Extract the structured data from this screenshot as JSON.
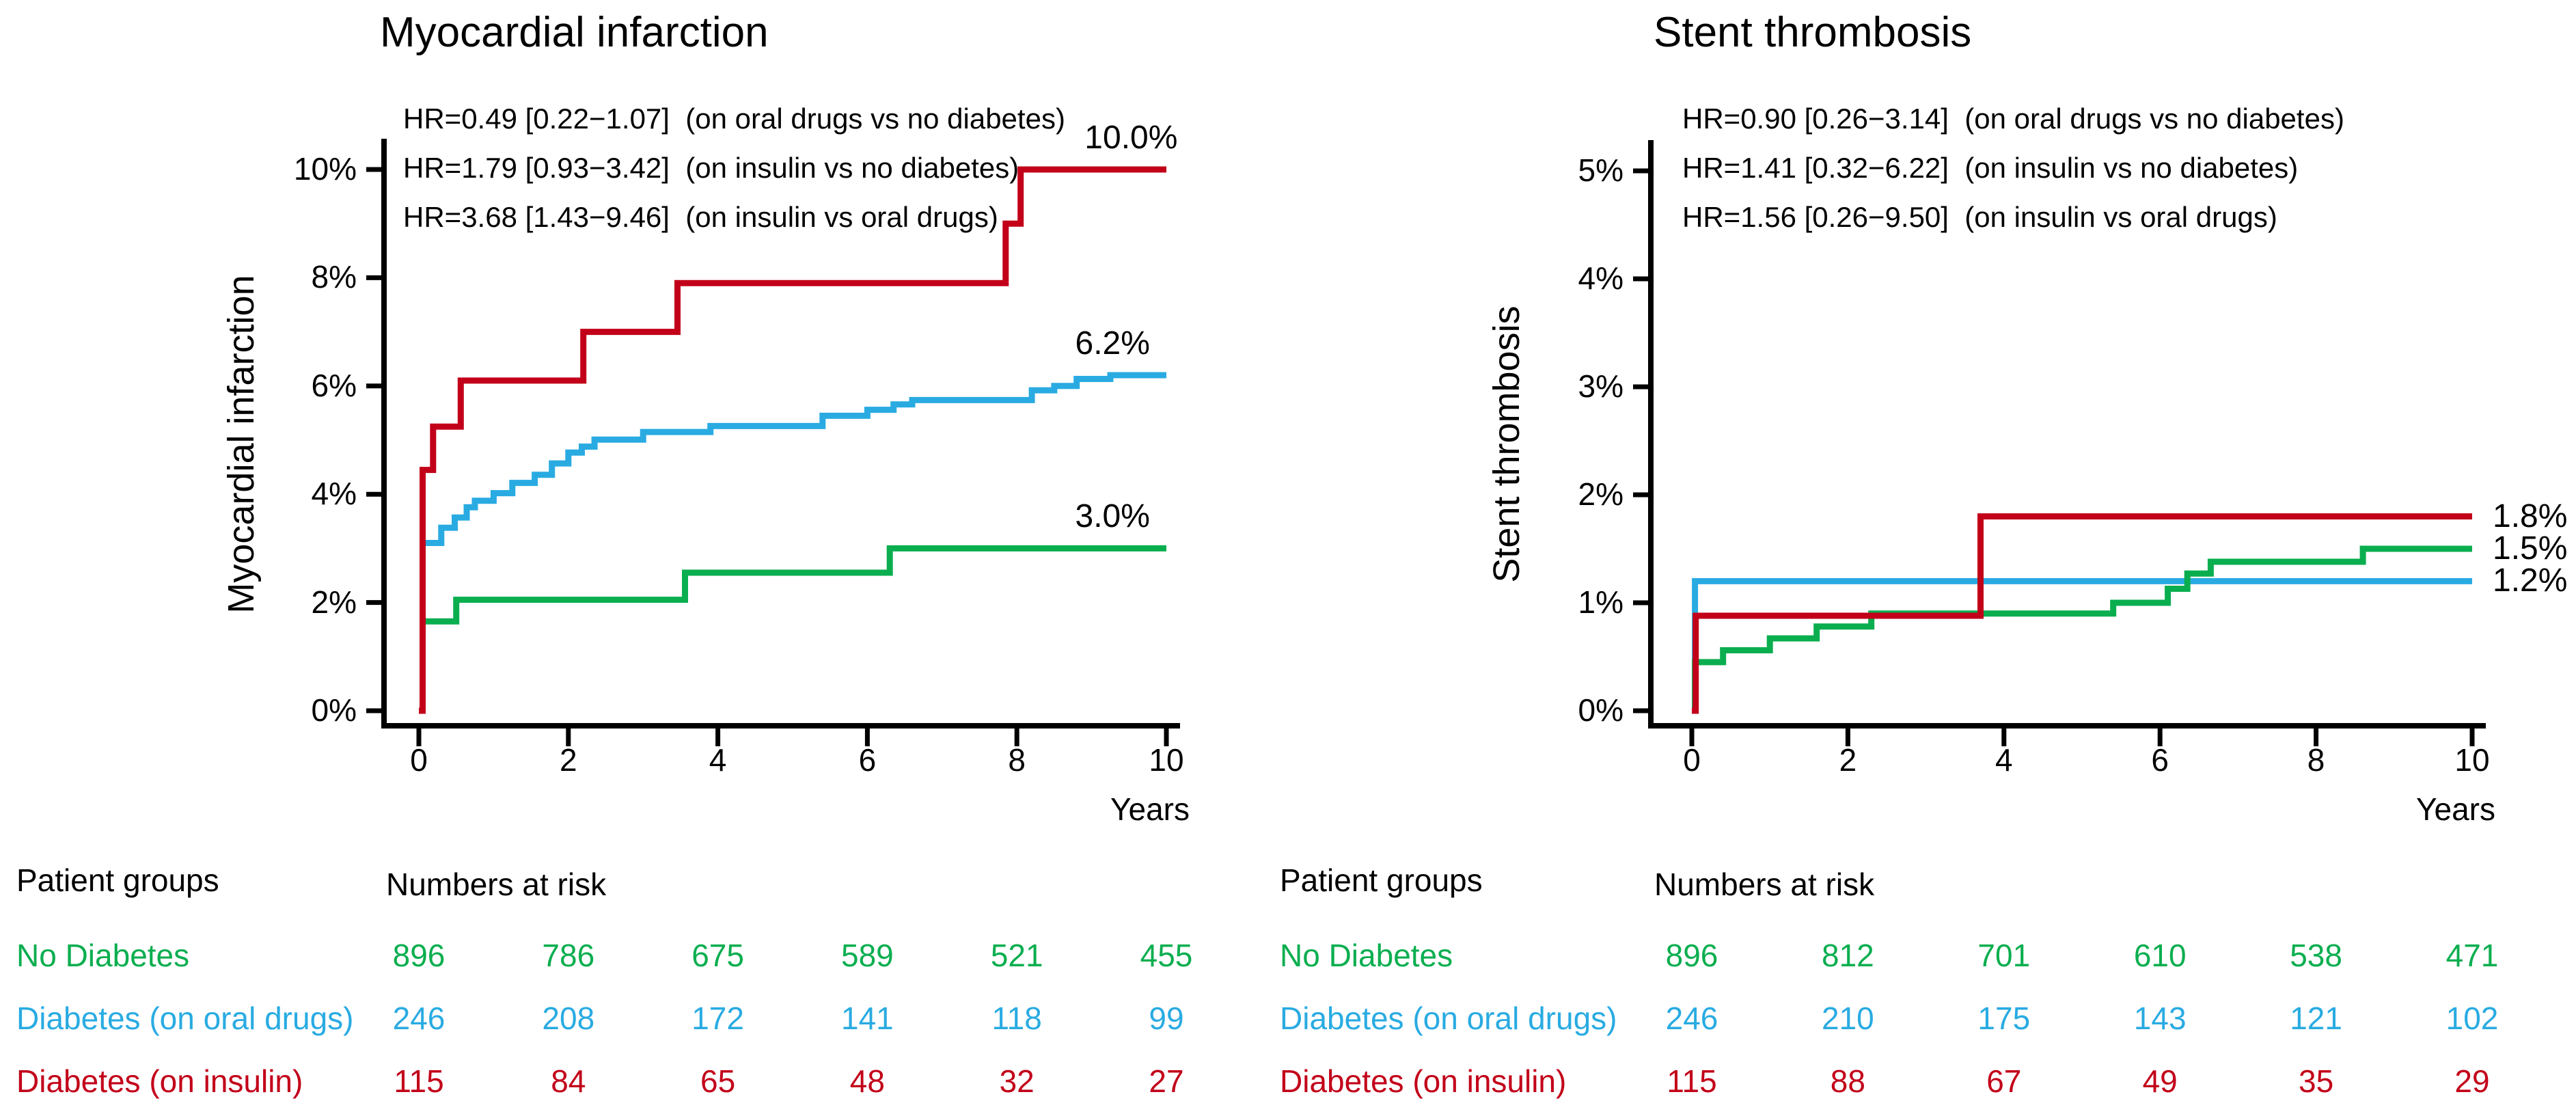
{
  "colors": {
    "no_diabetes": "#0aae4f",
    "oral": "#29abe2",
    "insulin": "#c20019",
    "axis": "#000000",
    "text": "#000000",
    "background": "#ffffff"
  },
  "chart_data": [
    {
      "type": "line",
      "subtype": "step-cumulative-incidence",
      "title": "Myocardial infarction",
      "ylabel": "Myocardial infarction",
      "xlabel": "Years",
      "xlim": [
        0,
        10
      ],
      "ylim_pct": [
        0,
        10
      ],
      "grid": false,
      "xtick_values": [
        0,
        2,
        4,
        6,
        8,
        10
      ],
      "xtick_labels": [
        "0",
        "2",
        "4",
        "6",
        "8",
        "10"
      ],
      "ytick_values": [
        0,
        2,
        4,
        6,
        8,
        10
      ],
      "ytick_labels": [
        "0%",
        "2%",
        "4%",
        "6%",
        "8%",
        "10%"
      ],
      "hr_annotations": [
        "HR=0.49 [0.22−1.07]  (on oral drugs vs no diabetes)",
        "HR=1.79 [0.93−3.42]  (on insulin vs no diabetes)",
        "HR=3.68 [1.43−9.46]  (on insulin vs oral drugs)"
      ],
      "end_label_style": "above",
      "series": [
        {
          "name": "Diabetes (on oral drugs)",
          "color_key": "oral",
          "end_label": "6.2%",
          "end_label_year": 9.78,
          "points": [
            [
              0,
              0
            ],
            [
              0.05,
              3.1
            ],
            [
              0.3,
              3.38
            ],
            [
              0.48,
              3.57
            ],
            [
              0.64,
              3.76
            ],
            [
              0.75,
              3.88
            ],
            [
              1.0,
              4.02
            ],
            [
              1.25,
              4.21
            ],
            [
              1.55,
              4.36
            ],
            [
              1.78,
              4.57
            ],
            [
              2.0,
              4.77
            ],
            [
              2.18,
              4.88
            ],
            [
              2.35,
              5.01
            ],
            [
              3.0,
              5.15
            ],
            [
              3.9,
              5.26
            ],
            [
              5.4,
              5.45
            ],
            [
              6.0,
              5.56
            ],
            [
              6.35,
              5.66
            ],
            [
              6.6,
              5.74
            ],
            [
              8.2,
              5.92
            ],
            [
              8.5,
              6.0
            ],
            [
              8.8,
              6.13
            ],
            [
              9.25,
              6.2
            ],
            [
              10,
              6.2
            ]
          ]
        },
        {
          "name": "No Diabetes",
          "color_key": "no_diabetes",
          "end_label": "3.0%",
          "end_label_year": 9.78,
          "points": [
            [
              0,
              0
            ],
            [
              0.05,
              1.65
            ],
            [
              0.5,
              2.05
            ],
            [
              3.56,
              2.55
            ],
            [
              6.3,
              3.0
            ],
            [
              10,
              3.0
            ]
          ]
        },
        {
          "name": "Diabetes (on insulin)",
          "color_key": "insulin",
          "end_label": "10.0%",
          "end_label_year": 10.15,
          "points": [
            [
              0,
              0
            ],
            [
              0.05,
              4.45
            ],
            [
              0.19,
              5.25
            ],
            [
              0.56,
              6.1
            ],
            [
              2.2,
              7.0
            ],
            [
              3.46,
              7.9
            ],
            [
              7.85,
              9.0
            ],
            [
              8.05,
              10.0
            ],
            [
              10,
              10.0
            ]
          ]
        }
      ]
    },
    {
      "type": "line",
      "subtype": "step-cumulative-incidence",
      "title": "Stent thrombosis",
      "ylabel": "Stent thrombosis",
      "xlabel": "Years",
      "xlim": [
        0,
        10
      ],
      "ylim_pct": [
        0,
        5
      ],
      "grid": false,
      "xtick_values": [
        0,
        2,
        4,
        6,
        8,
        10
      ],
      "xtick_labels": [
        "0",
        "2",
        "4",
        "6",
        "8",
        "10"
      ],
      "ytick_values": [
        0,
        1,
        2,
        3,
        4,
        5
      ],
      "ytick_labels": [
        "0%",
        "1%",
        "2%",
        "3%",
        "4%",
        "5%"
      ],
      "hr_annotations": [
        "HR=0.90 [0.26−3.14]  (on oral drugs vs no diabetes)",
        "HR=1.41 [0.32−6.22]  (on insulin vs no diabetes)",
        "HR=1.56 [0.26−9.50]  (on insulin vs oral drugs)"
      ],
      "end_label_style": "right",
      "series": [
        {
          "name": "Diabetes (on oral drugs)",
          "color_key": "oral",
          "end_label": "1.2%",
          "end_label_year": 10,
          "points": [
            [
              0,
              0
            ],
            [
              0.04,
              1.2
            ],
            [
              10,
              1.2
            ]
          ]
        },
        {
          "name": "No Diabetes",
          "color_key": "no_diabetes",
          "end_label": "1.5%",
          "end_label_year": 10,
          "points": [
            [
              0,
              0
            ],
            [
              0.04,
              0.45
            ],
            [
              0.4,
              0.56
            ],
            [
              1.0,
              0.67
            ],
            [
              1.6,
              0.78
            ],
            [
              2.3,
              0.9
            ],
            [
              5.4,
              1.0
            ],
            [
              6.1,
              1.13
            ],
            [
              6.35,
              1.27
            ],
            [
              6.65,
              1.38
            ],
            [
              8.6,
              1.5
            ],
            [
              10,
              1.5
            ]
          ]
        },
        {
          "name": "Diabetes (on insulin)",
          "color_key": "insulin",
          "end_label": "1.8%",
          "end_label_year": 10,
          "points": [
            [
              0,
              0
            ],
            [
              0.05,
              0.88
            ],
            [
              3.7,
              1.8
            ],
            [
              10,
              1.8
            ]
          ]
        }
      ]
    }
  ],
  "risk_tables": [
    {
      "patient_groups_label": "Patient groups",
      "numbers_at_risk_label": "Numbers at risk",
      "years": [
        0,
        2,
        4,
        6,
        8,
        10
      ],
      "rows": [
        {
          "label": "No Diabetes",
          "color_key": "no_diabetes",
          "values": [
            "896",
            "786",
            "675",
            "589",
            "521",
            "455"
          ]
        },
        {
          "label": "Diabetes (on oral drugs)",
          "color_key": "oral",
          "values": [
            "246",
            "208",
            "172",
            "141",
            "118",
            "99"
          ]
        },
        {
          "label": "Diabetes (on insulin)",
          "color_key": "insulin",
          "values": [
            "115",
            "84",
            "65",
            "48",
            "32",
            "27"
          ]
        }
      ]
    },
    {
      "patient_groups_label": "Patient groups",
      "numbers_at_risk_label": "Numbers at risk",
      "years": [
        0,
        2,
        4,
        6,
        8,
        10
      ],
      "rows": [
        {
          "label": "No Diabetes",
          "color_key": "no_diabetes",
          "values": [
            "896",
            "812",
            "701",
            "610",
            "538",
            "471"
          ]
        },
        {
          "label": "Diabetes (on oral drugs)",
          "color_key": "oral",
          "values": [
            "246",
            "210",
            "175",
            "143",
            "121",
            "102"
          ]
        },
        {
          "label": "Diabetes (on insulin)",
          "color_key": "insulin",
          "values": [
            "115",
            "88",
            "67",
            "49",
            "35",
            "29"
          ]
        }
      ]
    }
  ]
}
